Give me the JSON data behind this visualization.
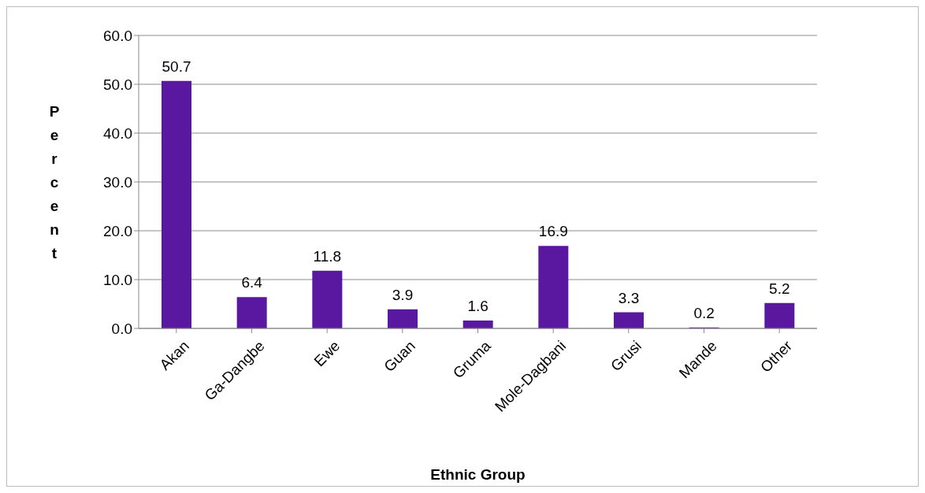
{
  "chart_data": {
    "type": "bar",
    "xlabel": "Ethnic Group",
    "ylabel": "Percent",
    "categories": [
      "Akan",
      "Ga-Dangbe",
      "Ewe",
      "Guan",
      "Gruma",
      "Mole-Dagbani",
      "Grusi",
      "Mande",
      "Other"
    ],
    "values": [
      50.7,
      6.4,
      11.8,
      3.9,
      1.6,
      16.9,
      3.3,
      0.2,
      5.2
    ],
    "color": "#5a17a0",
    "ylim": [
      0,
      60
    ],
    "yticks": [
      {
        "value": 0,
        "label": "0.0"
      },
      {
        "value": 10,
        "label": "10.0"
      },
      {
        "value": 20,
        "label": "20.0"
      },
      {
        "value": 30,
        "label": "30.0"
      },
      {
        "value": 40,
        "label": "40.0"
      },
      {
        "value": 50,
        "label": "50.0"
      },
      {
        "value": 60,
        "label": "60.0"
      }
    ],
    "grid": "y",
    "data_labels": true,
    "legend": false
  }
}
